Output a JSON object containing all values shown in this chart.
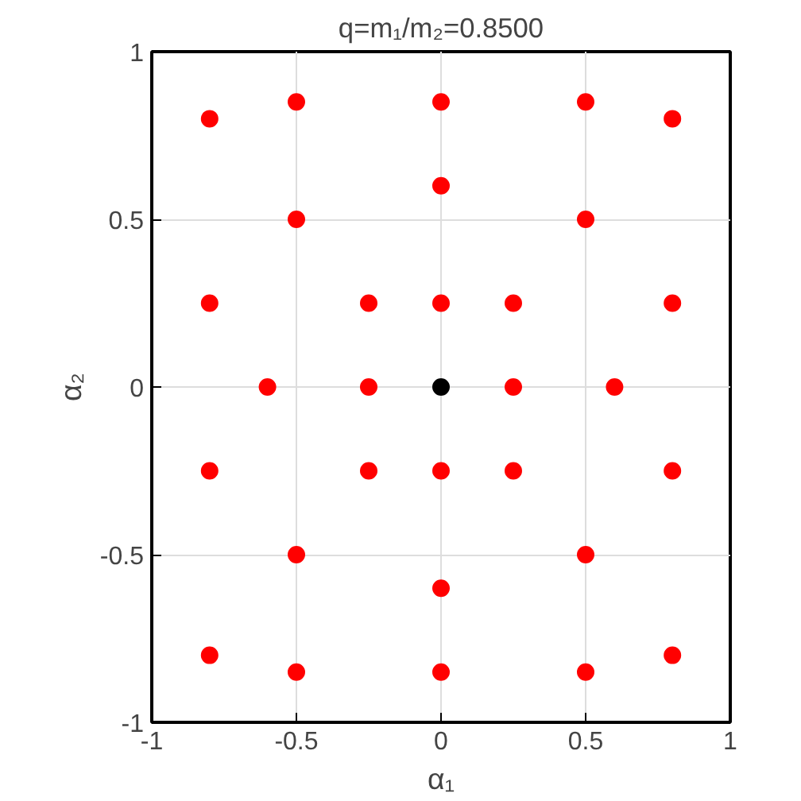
{
  "chart_data": {
    "type": "scatter",
    "title": "q=m₁/m₂=0.8500",
    "xlabel": "α₁",
    "ylabel": "α₂",
    "xlim": [
      -1,
      1
    ],
    "ylim": [
      -1,
      1
    ],
    "xticks": [
      -1,
      -0.5,
      0,
      0.5,
      1
    ],
    "yticks": [
      -1,
      -0.5,
      0,
      0.5,
      1
    ],
    "grid": true,
    "marker": "circle",
    "series": [
      {
        "color": "#ff0000",
        "x": [
          -0.8,
          -0.5,
          0,
          0.5,
          0.8,
          0,
          -0.5,
          0.5,
          -0.8,
          -0.25,
          0,
          0.25,
          0.8,
          -0.6,
          -0.25,
          0.25,
          0.6,
          -0.8,
          -0.25,
          0,
          0.25,
          0.8,
          -0.5,
          0.5,
          0,
          -0.8,
          -0.5,
          0,
          0.5,
          0.8
        ],
        "values": [
          0.8,
          0.85,
          0.85,
          0.85,
          0.8,
          0.6,
          0.5,
          0.5,
          0.25,
          0.25,
          0.25,
          0.25,
          0.25,
          0,
          0,
          0,
          0,
          -0.25,
          -0.25,
          -0.25,
          -0.25,
          -0.25,
          -0.5,
          -0.5,
          -0.6,
          -0.8,
          -0.85,
          -0.85,
          -0.85,
          -0.8
        ]
      },
      {
        "color": "#000000",
        "x": [
          0
        ],
        "values": [
          0
        ]
      }
    ]
  }
}
